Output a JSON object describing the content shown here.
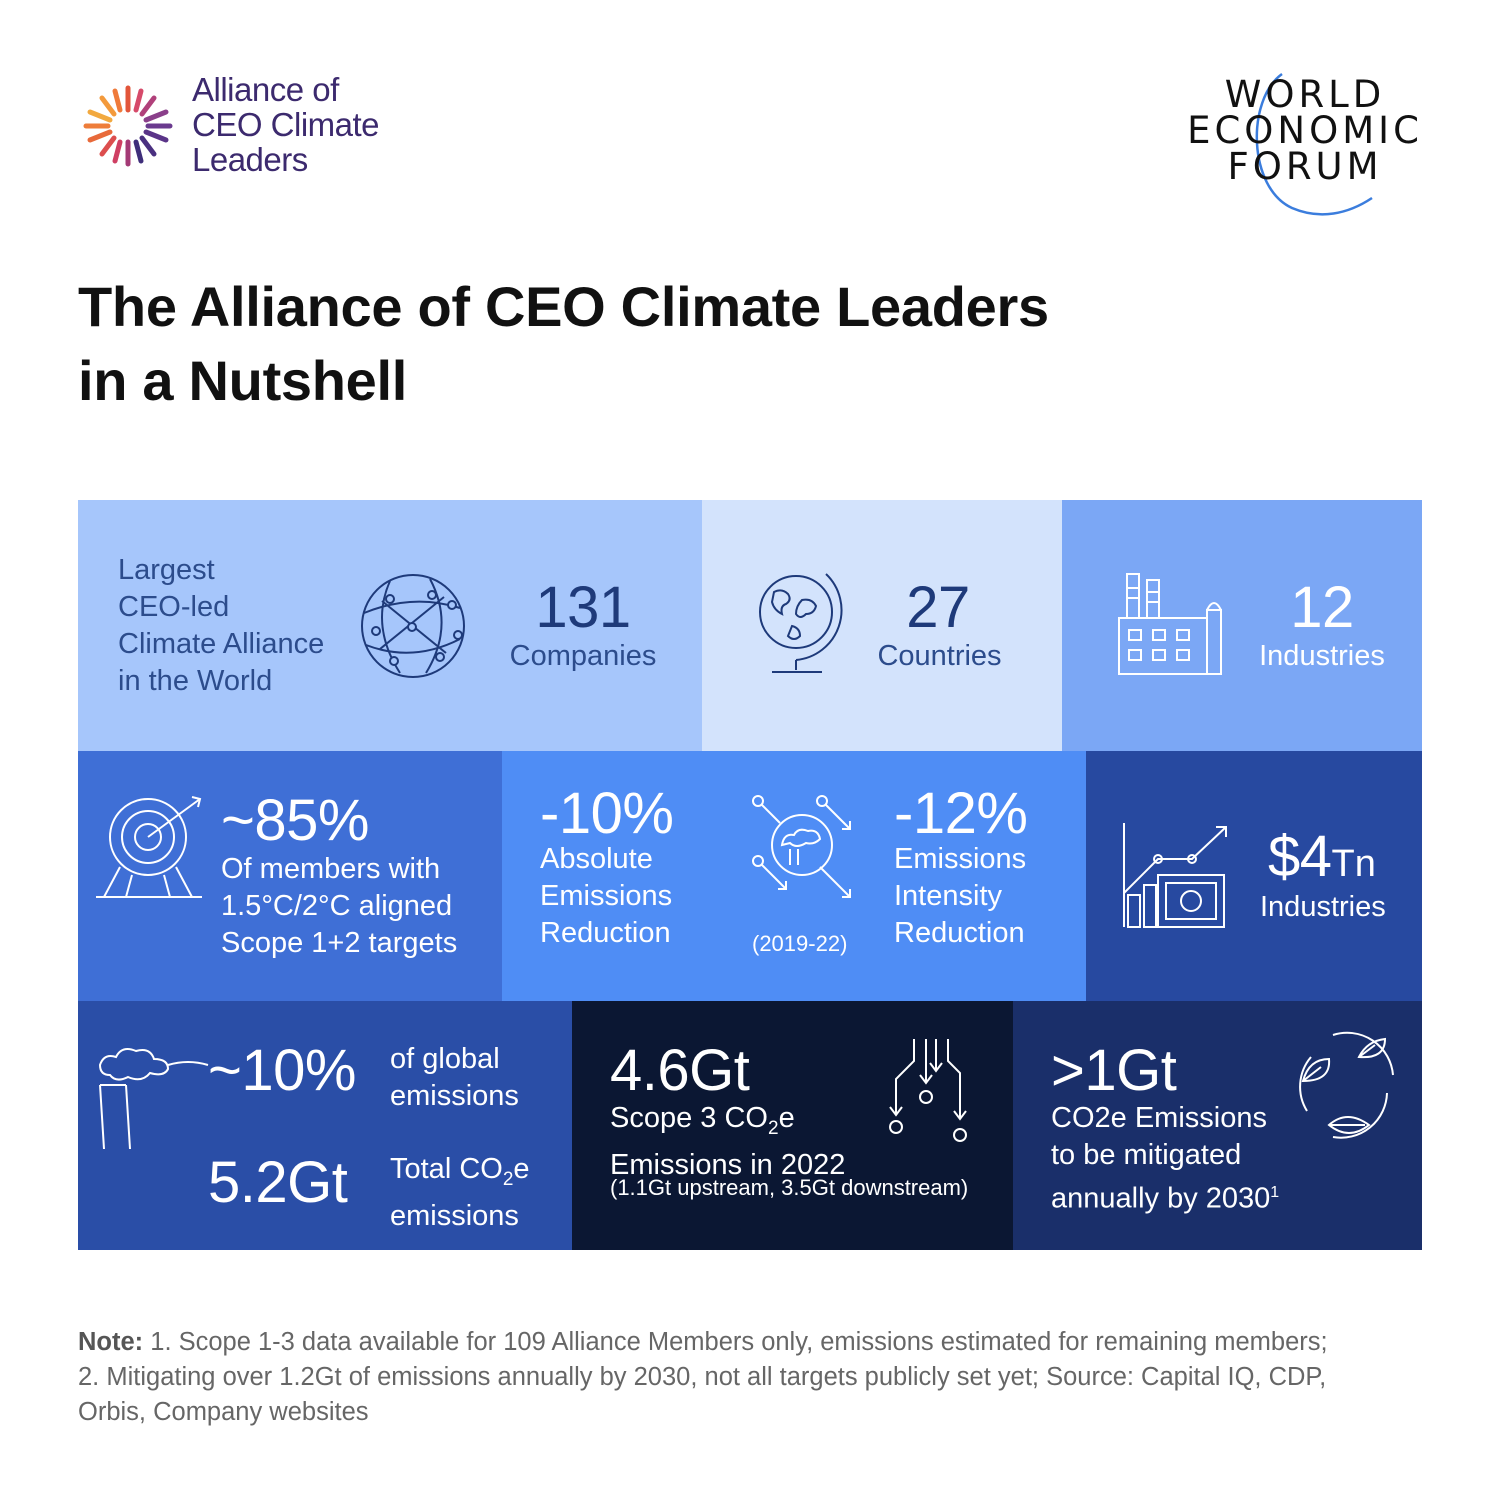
{
  "header": {
    "alliance_logo": {
      "line1": "Alliance of",
      "line2": "CEO Climate",
      "line3": "Leaders"
    },
    "wef_logo": {
      "line1": "WORLD",
      "line2": "ECONOMIC",
      "line3": "FORUM"
    }
  },
  "title": {
    "line1": "The Alliance of CEO Climate Leaders",
    "line2": "in a Nutshell"
  },
  "tiles": {
    "largest": {
      "l1": "Largest",
      "l2": "CEO-led",
      "l3": "Climate Alliance",
      "l4": "in the World",
      "icon": "network-globe-icon"
    },
    "companies": {
      "value": "131",
      "label": "Companies"
    },
    "countries": {
      "value": "27",
      "label": "Countries",
      "icon": "globe-stand-icon"
    },
    "industries": {
      "value": "12",
      "label": "Industries",
      "icon": "factory-icon"
    },
    "targets": {
      "value": "~85%",
      "l1": "Of members with",
      "l2": "1.5°C/2°C  aligned",
      "l3": "Scope 1+2 targets",
      "icon": "target-icon"
    },
    "absolute": {
      "value": "-10%",
      "l1": "Absolute",
      "l2": "Emissions",
      "l3": "Reduction",
      "period": "(2019-22)",
      "icon": "emissions-arrows-icon"
    },
    "intensity": {
      "value": "-12%",
      "l1": "Emissions",
      "l2": "Intensity",
      "l3": "Reduction"
    },
    "revenue": {
      "value": "$4",
      "unit": "Tn",
      "label": "Industries",
      "icon": "growth-chart-icon"
    },
    "global": {
      "value": "~10%",
      "l1": "of global",
      "l2": "emissions",
      "icon": "smokestack-icon"
    },
    "total": {
      "value": "5.2Gt",
      "l1_pre": "Total CO",
      "l1_sub": "2",
      "l1_post": "e",
      "l2": "emissions"
    },
    "scope3": {
      "value": "4.6Gt",
      "l1_pre": "Scope 3 CO",
      "l1_sub": "2",
      "l1_post": "e",
      "l2": "Emissions in 2022",
      "l3": "(1.1Gt upstream, 3.5Gt downstream)",
      "icon": "supply-chain-icon"
    },
    "mitigated": {
      "value": ">1Gt",
      "l1": "CO2e Emissions",
      "l2": "to be mitigated",
      "l3_pre": "annually by 2030",
      "l3_sup": "1",
      "icon": "recycle-leaves-icon"
    }
  },
  "note": {
    "label": "Note:",
    "line1": " 1. Scope 1-3 data available for 109 Alliance Members only, emissions estimated for remaining members;",
    "line2": "2. Mitigating over 1.2Gt of emissions annually by 2030, not all targets publicly set yet; Source: Capital IQ, CDP,",
    "line3": "Orbis, Company websites"
  },
  "colors": {
    "tile_light_1": "#a6c6fb",
    "tile_light_2": "#d3e3fc",
    "tile_light_3": "#7ba7f5",
    "tile_mid_1": "#3f6fd6",
    "tile_mid_2": "#4f8df5",
    "tile_mid_3": "#2749a0",
    "tile_dark_1": "#2a4ea7",
    "tile_dark_2": "#0b1733",
    "tile_dark_3": "#1a2f6a"
  }
}
